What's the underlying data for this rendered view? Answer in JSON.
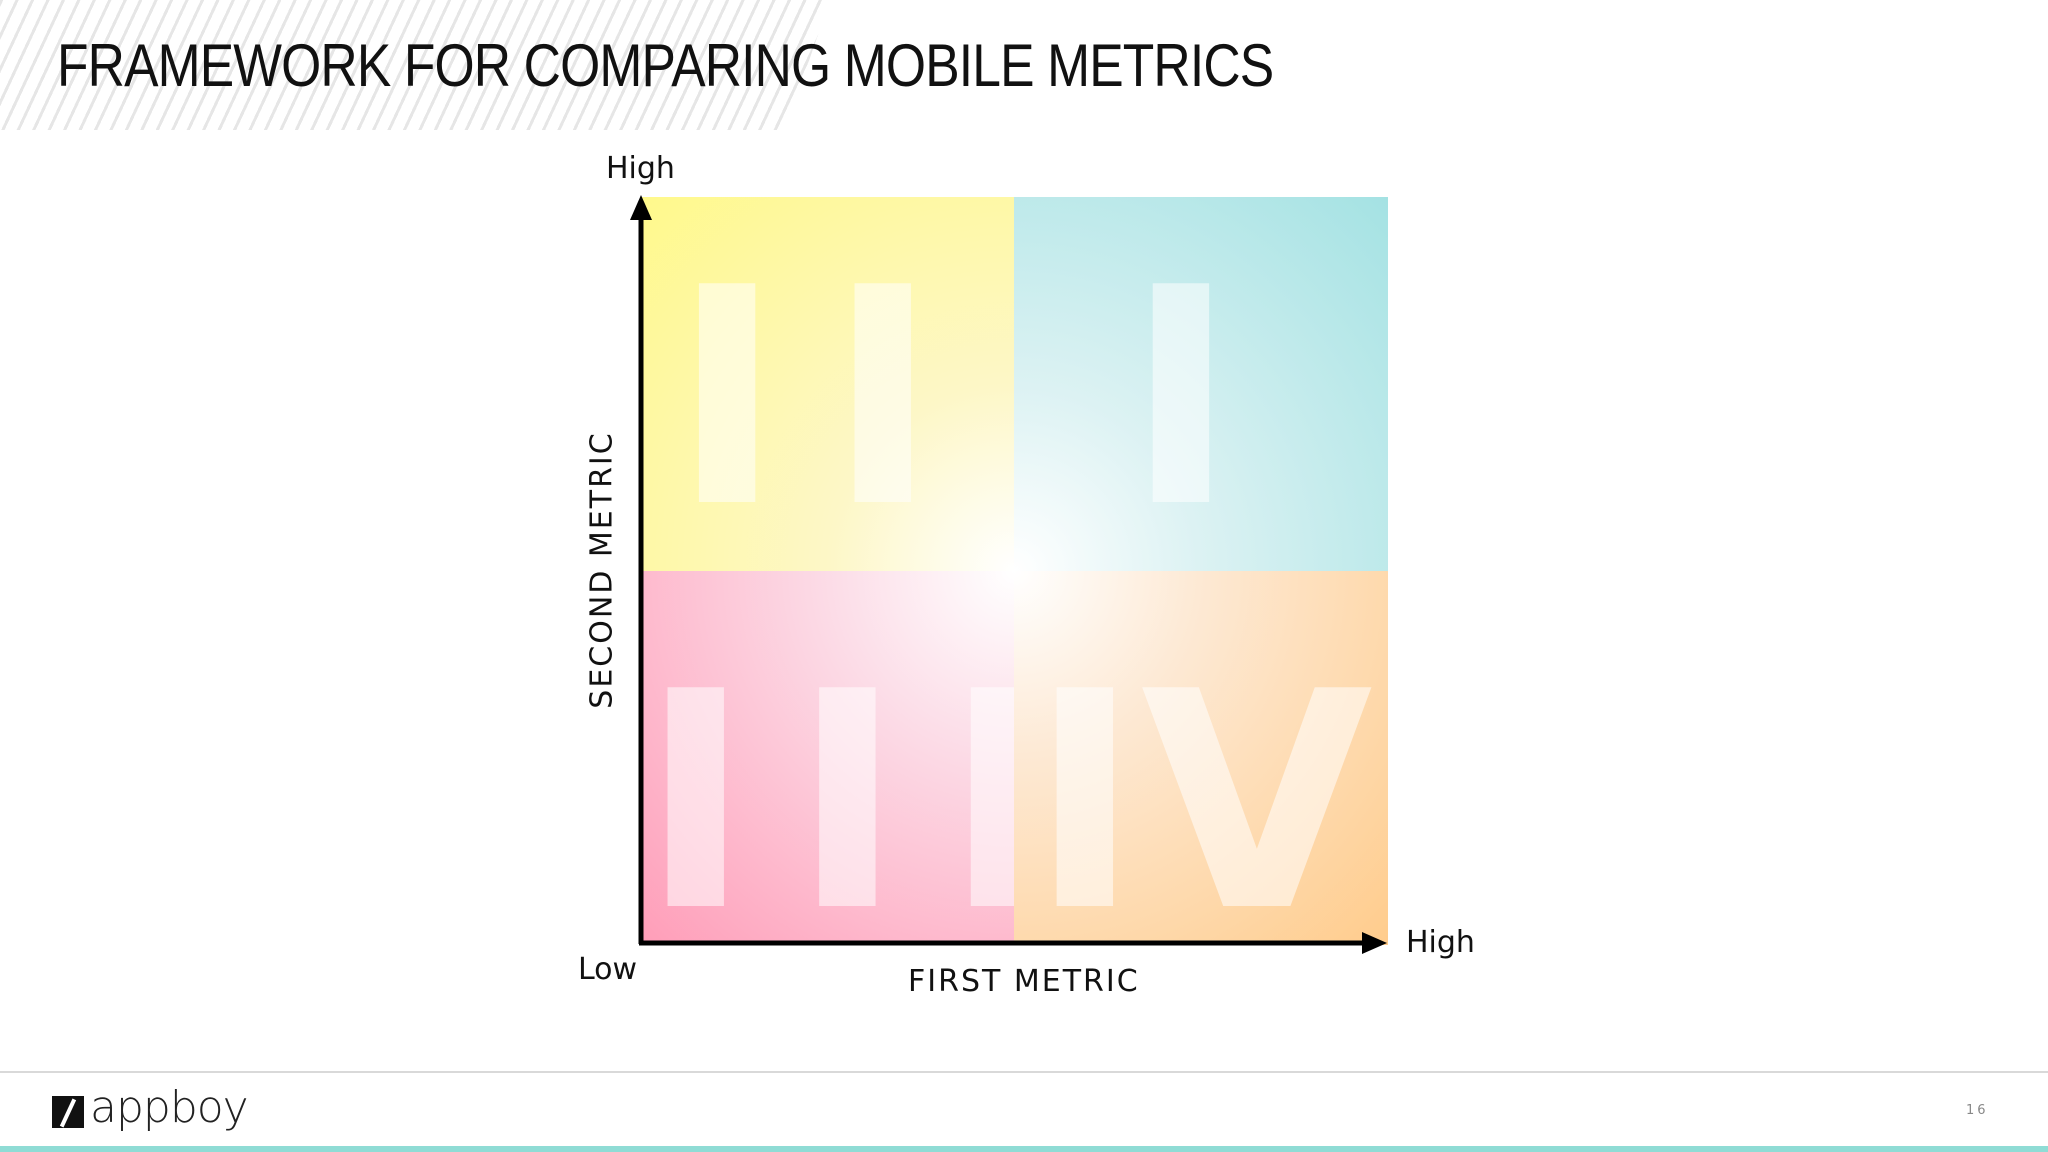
{
  "slide": {
    "title": "FRAMEWORK FOR COMPARING MOBILE METRICS",
    "page_number": "16"
  },
  "diagram": {
    "y_axis": {
      "title": "SECOND METRIC",
      "high_label": "High"
    },
    "x_axis": {
      "title": "FIRST METRIC",
      "high_label": "High"
    },
    "origin_label": "Low",
    "quadrants": [
      {
        "id": "q1",
        "numeral": "I",
        "position": "top-right",
        "color": "#a4e2e3"
      },
      {
        "id": "q2",
        "numeral": "II",
        "position": "top-left",
        "color": "#fff98b"
      },
      {
        "id": "q3",
        "numeral": "III",
        "position": "bottom-left",
        "color": "#ff9db8"
      },
      {
        "id": "q4",
        "numeral": "IV",
        "position": "bottom-right",
        "color": "#ffcc8c"
      }
    ]
  },
  "footer": {
    "logo_text": "appboy",
    "logo_icon": "appboy-logo-icon",
    "accent_color": "#8fdcd5"
  }
}
